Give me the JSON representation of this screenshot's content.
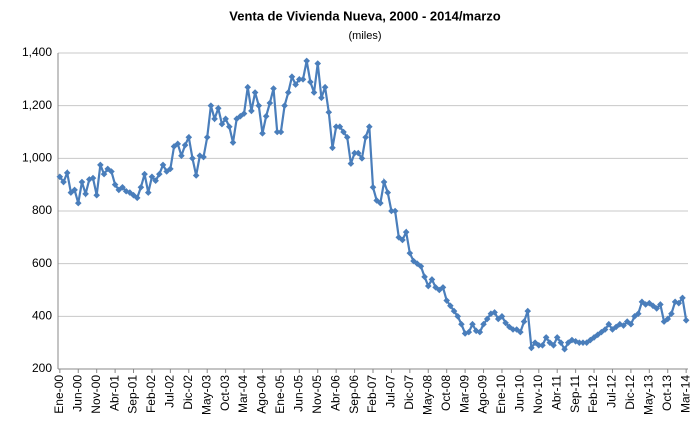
{
  "chart_data": {
    "type": "line",
    "title": "Venta de Vivienda Nueva, 2000 - 2014/marzo",
    "subtitle": "(miles)",
    "categories": [
      "Ene-00",
      null,
      null,
      null,
      null,
      "Jun-00",
      null,
      null,
      null,
      null,
      "Nov-00",
      null,
      null,
      null,
      null,
      "Abr-01",
      null,
      null,
      null,
      null,
      "Sep-01",
      null,
      null,
      null,
      null,
      "Feb-02",
      null,
      null,
      null,
      null,
      "Jul-02",
      null,
      null,
      null,
      null,
      "Dic-02",
      null,
      null,
      null,
      null,
      "May-03",
      null,
      null,
      null,
      null,
      "Oct-03",
      null,
      null,
      null,
      null,
      "Mar-04",
      null,
      null,
      null,
      null,
      "Ago-04",
      null,
      null,
      null,
      null,
      "Ene-05",
      null,
      null,
      null,
      null,
      "Jun-05",
      null,
      null,
      null,
      null,
      "Nov-05",
      null,
      null,
      null,
      null,
      "Abr-06",
      null,
      null,
      null,
      null,
      "Sep-06",
      null,
      null,
      null,
      null,
      "Feb-07",
      null,
      null,
      null,
      null,
      "Jul-07",
      null,
      null,
      null,
      null,
      "Dic-07",
      null,
      null,
      null,
      null,
      "May-08",
      null,
      null,
      null,
      null,
      "Oct-08",
      null,
      null,
      null,
      null,
      "Mar-09",
      null,
      null,
      null,
      null,
      "Ago-09",
      null,
      null,
      null,
      null,
      "Ene-10",
      null,
      null,
      null,
      null,
      "Jun-10",
      null,
      null,
      null,
      null,
      "Nov-10",
      null,
      null,
      null,
      null,
      "Abr-11",
      null,
      null,
      null,
      null,
      "Sep-11",
      null,
      null,
      null,
      null,
      "Feb-12",
      null,
      null,
      null,
      null,
      "Jul-12",
      null,
      null,
      null,
      null,
      "Dic-12",
      null,
      null,
      null,
      null,
      "May-13",
      null,
      null,
      null,
      null,
      "Oct-13",
      null,
      null,
      null,
      null,
      "Mar-14"
    ],
    "values": [
      930,
      910,
      945,
      870,
      880,
      830,
      910,
      865,
      920,
      925,
      860,
      975,
      940,
      960,
      950,
      900,
      880,
      890,
      875,
      870,
      860,
      850,
      890,
      940,
      870,
      930,
      915,
      940,
      975,
      950,
      960,
      1045,
      1055,
      1010,
      1050,
      1080,
      1000,
      935,
      1010,
      1005,
      1080,
      1200,
      1150,
      1190,
      1130,
      1150,
      1120,
      1060,
      1150,
      1160,
      1170,
      1270,
      1180,
      1250,
      1200,
      1095,
      1160,
      1210,
      1265,
      1100,
      1100,
      1200,
      1250,
      1310,
      1280,
      1300,
      1300,
      1370,
      1290,
      1250,
      1360,
      1230,
      1270,
      1175,
      1040,
      1120,
      1120,
      1100,
      1080,
      980,
      1020,
      1020,
      1000,
      1080,
      1120,
      890,
      840,
      830,
      910,
      870,
      800,
      800,
      700,
      690,
      720,
      640,
      610,
      600,
      590,
      550,
      515,
      540,
      510,
      500,
      510,
      460,
      440,
      420,
      400,
      370,
      335,
      340,
      370,
      345,
      340,
      370,
      390,
      410,
      415,
      390,
      400,
      375,
      360,
      350,
      350,
      340,
      380,
      420,
      280,
      300,
      290,
      290,
      320,
      300,
      290,
      320,
      300,
      275,
      300,
      310,
      305,
      300,
      300,
      300,
      310,
      320,
      330,
      340,
      350,
      370,
      350,
      360,
      370,
      365,
      380,
      370,
      400,
      410,
      455,
      445,
      450,
      440,
      430,
      445,
      380,
      390,
      410,
      455,
      450,
      470,
      385
    ],
    "color": "#4a7ebb",
    "ylim": [
      200,
      1400
    ],
    "yticks": [
      200,
      400,
      600,
      800,
      {
        "value": 1000,
        "label": "1,000"
      },
      {
        "value": 1200,
        "label": "1,200"
      },
      {
        "value": 1400,
        "label": "1,400"
      }
    ],
    "grid": true
  }
}
